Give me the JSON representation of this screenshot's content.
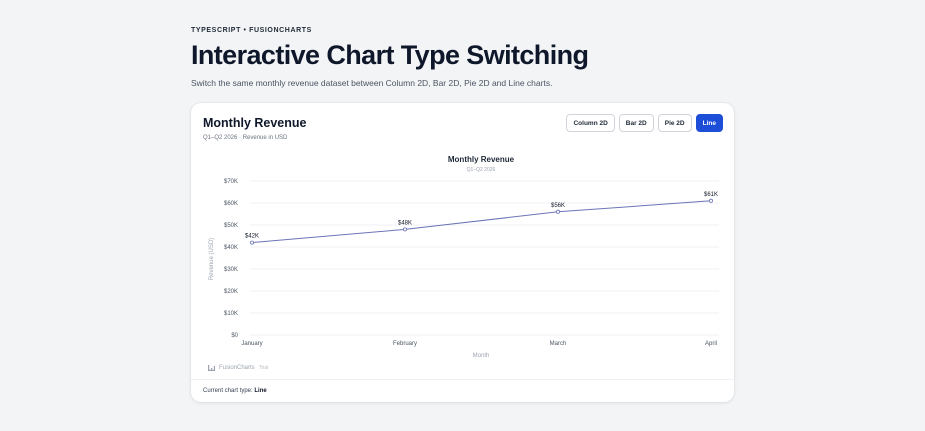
{
  "header": {
    "eyebrow": "TYPESCRIPT • FUSIONCHARTS",
    "title": "Interactive Chart Type Switching",
    "description": "Switch the same monthly revenue dataset between Column 2D, Bar 2D, Pie 2D and Line charts."
  },
  "card": {
    "title": "Monthly Revenue",
    "subtitle": "Q1–Q2 2026 · Revenue in USD",
    "buttons": [
      {
        "label": "Column 2D",
        "active": false
      },
      {
        "label": "Bar 2D",
        "active": false
      },
      {
        "label": "Pie 2D",
        "active": false
      },
      {
        "label": "Line",
        "active": true
      }
    ],
    "watermark": "FusionCharts",
    "watermark_suffix": "Trial",
    "footer_label": "Current chart type:",
    "footer_value": "Line"
  },
  "colors": {
    "accent": "#1d4ed8",
    "line": "#6b74b8",
    "grid": "#eceef2"
  },
  "chart_data": {
    "type": "line",
    "title": "Monthly Revenue",
    "subtitle": "Q1–Q2 2026",
    "xlabel": "Month",
    "ylabel": "Revenue (USD)",
    "categories": [
      "January",
      "February",
      "March",
      "April"
    ],
    "values": [
      42000,
      48000,
      56000,
      61000
    ],
    "data_labels": [
      "$42K",
      "$48K",
      "$56K",
      "$61K"
    ],
    "ylim": [
      0,
      70000
    ],
    "yticks": [
      0,
      10000,
      20000,
      30000,
      40000,
      50000,
      60000,
      70000
    ],
    "ytick_labels": [
      "$0",
      "$10K",
      "$20K",
      "$30K",
      "$40K",
      "$50K",
      "$60K",
      "$70K"
    ],
    "grid": true,
    "legend": "none"
  }
}
